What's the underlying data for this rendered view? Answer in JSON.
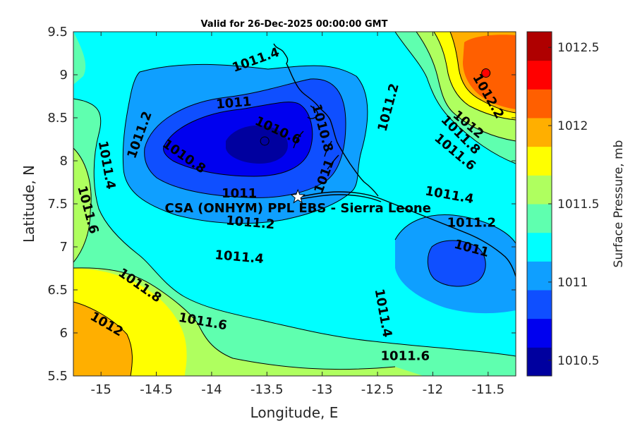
{
  "chart_data": {
    "type": "heatmap",
    "subtype": "filled-contour",
    "title": "Valid for 26-Dec-2025 00:00:00 GMT",
    "xlabel": "Longitude, E",
    "ylabel": "Latitude, N",
    "xlim": [
      -15.25,
      -11.25
    ],
    "ylim": [
      5.5,
      9.5
    ],
    "xticks": [
      -15,
      -14.5,
      -14,
      -13.5,
      -13,
      -12.5,
      -12,
      -11.5
    ],
    "xtick_labels": [
      "-15",
      "-14.5",
      "-14",
      "-13.5",
      "-13",
      "-12.5",
      "-12",
      "-11.5"
    ],
    "yticks": [
      5.5,
      6,
      6.5,
      7,
      7.5,
      8,
      8.5,
      9,
      9.5
    ],
    "ytick_labels": [
      "5.5",
      "6",
      "6.5",
      "7",
      "7.5",
      "8",
      "8.5",
      "9",
      "9.5"
    ],
    "colorbar": {
      "label": "Surface Pressure, mb",
      "range": [
        1010.4,
        1012.6
      ],
      "tick_values": [
        1010.5,
        1011,
        1011.5,
        1012,
        1012.5
      ],
      "tick_labels": [
        "1010.5",
        "1011",
        "1011.5",
        "1012",
        "1012.5"
      ],
      "level_colors": [
        "#00009f",
        "#0000ef",
        "#0f4fff",
        "#0f9fff",
        "#00ffff",
        "#5fffaf",
        "#afff5f",
        "#ffff00",
        "#ffaf00",
        "#ff5f00",
        "#ff0000",
        "#af0000"
      ]
    },
    "contour_labels": [
      {
        "text": "1011.4",
        "lon": -13.6,
        "lat": 9.17,
        "angle": -20
      },
      {
        "text": "1011.2",
        "lon": -12.4,
        "lat": 8.62,
        "angle": -75
      },
      {
        "text": "1011",
        "lon": -13.8,
        "lat": 8.67,
        "angle": -5
      },
      {
        "text": "1010.6",
        "lon": -13.4,
        "lat": 8.35,
        "angle": 25
      },
      {
        "text": "1010.8",
        "lon": -13.0,
        "lat": 8.38,
        "angle": 75
      },
      {
        "text": "1011",
        "lon": -12.98,
        "lat": 7.82,
        "angle": -70
      },
      {
        "text": "1011.2",
        "lon": -14.65,
        "lat": 8.3,
        "angle": -70
      },
      {
        "text": "1010.8",
        "lon": -14.25,
        "lat": 8.05,
        "angle": 35
      },
      {
        "text": "1011.4",
        "lon": -14.95,
        "lat": 7.95,
        "angle": 80
      },
      {
        "text": "1011.6",
        "lon": -15.12,
        "lat": 7.43,
        "angle": 75
      },
      {
        "text": "1011",
        "lon": -13.75,
        "lat": 7.62,
        "angle": 0
      },
      {
        "text": "1011.2",
        "lon": -13.65,
        "lat": 7.28,
        "angle": 5
      },
      {
        "text": "1011.4",
        "lon": -13.75,
        "lat": 6.88,
        "angle": 5
      },
      {
        "text": "1011.8",
        "lon": -14.65,
        "lat": 6.55,
        "angle": 35
      },
      {
        "text": "1012",
        "lon": -14.95,
        "lat": 6.1,
        "angle": 30
      },
      {
        "text": "1011.6",
        "lon": -14.08,
        "lat": 6.13,
        "angle": 10
      },
      {
        "text": "1011.4",
        "lon": -12.45,
        "lat": 6.23,
        "angle": 80
      },
      {
        "text": "1011.6",
        "lon": -12.25,
        "lat": 5.73,
        "angle": 0
      },
      {
        "text": "1011.4",
        "lon": -11.85,
        "lat": 7.6,
        "angle": 10
      },
      {
        "text": "1011.2",
        "lon": -11.65,
        "lat": 7.28,
        "angle": 0
      },
      {
        "text": "1011",
        "lon": -11.65,
        "lat": 6.98,
        "angle": 15
      },
      {
        "text": "1012.2",
        "lon": -11.5,
        "lat": 8.75,
        "angle": 60
      },
      {
        "text": "1012",
        "lon": -11.68,
        "lat": 8.42,
        "angle": 40
      },
      {
        "text": "1011.8",
        "lon": -11.75,
        "lat": 8.3,
        "angle": 45
      },
      {
        "text": "1011.6",
        "lon": -11.8,
        "lat": 8.1,
        "angle": 40
      }
    ],
    "markers": [
      {
        "type": "star",
        "lon": -13.22,
        "lat": 7.58
      },
      {
        "type": "low-center",
        "lon": -13.52,
        "lat": 8.23
      },
      {
        "type": "high-center",
        "lon": -11.52,
        "lat": 9.02
      }
    ],
    "site_label": {
      "text": "CSA (ONHYM) PPL EBS  - Sierra Leone",
      "lon": -13.22,
      "lat": 7.45
    },
    "grid": false,
    "legend": "none"
  }
}
